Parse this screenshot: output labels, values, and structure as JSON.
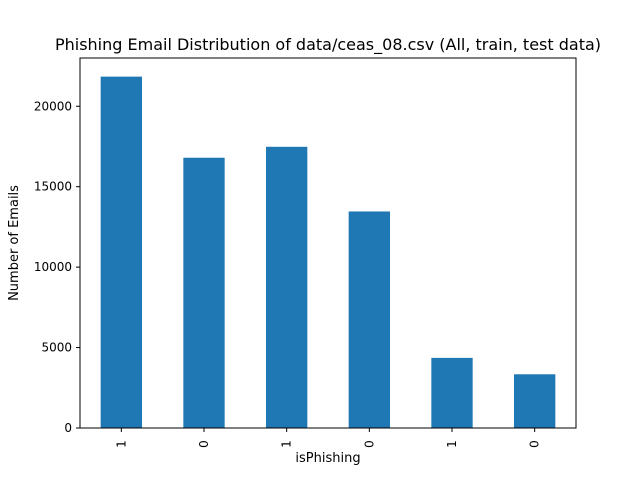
{
  "chart_data": {
    "type": "bar",
    "title": "Phishing Email Distribution of data/ceas_08.csv (All, train, test data)",
    "xlabel": "isPhishing",
    "ylabel": "Number of Emails",
    "categories": [
      "1",
      "0",
      "1",
      "0",
      "1",
      "0"
    ],
    "values": [
      21842,
      16800,
      17480,
      13460,
      4360,
      3340
    ],
    "ylim": [
      0,
      23000
    ],
    "yticks": [
      0,
      5000,
      10000,
      15000,
      20000
    ],
    "ytick_labels": [
      "0",
      "5000",
      "10000",
      "15000",
      "20000"
    ],
    "x_tick_rotation": "vertical",
    "grid": false,
    "legend": "none",
    "bar_color": "#1f77b4"
  }
}
